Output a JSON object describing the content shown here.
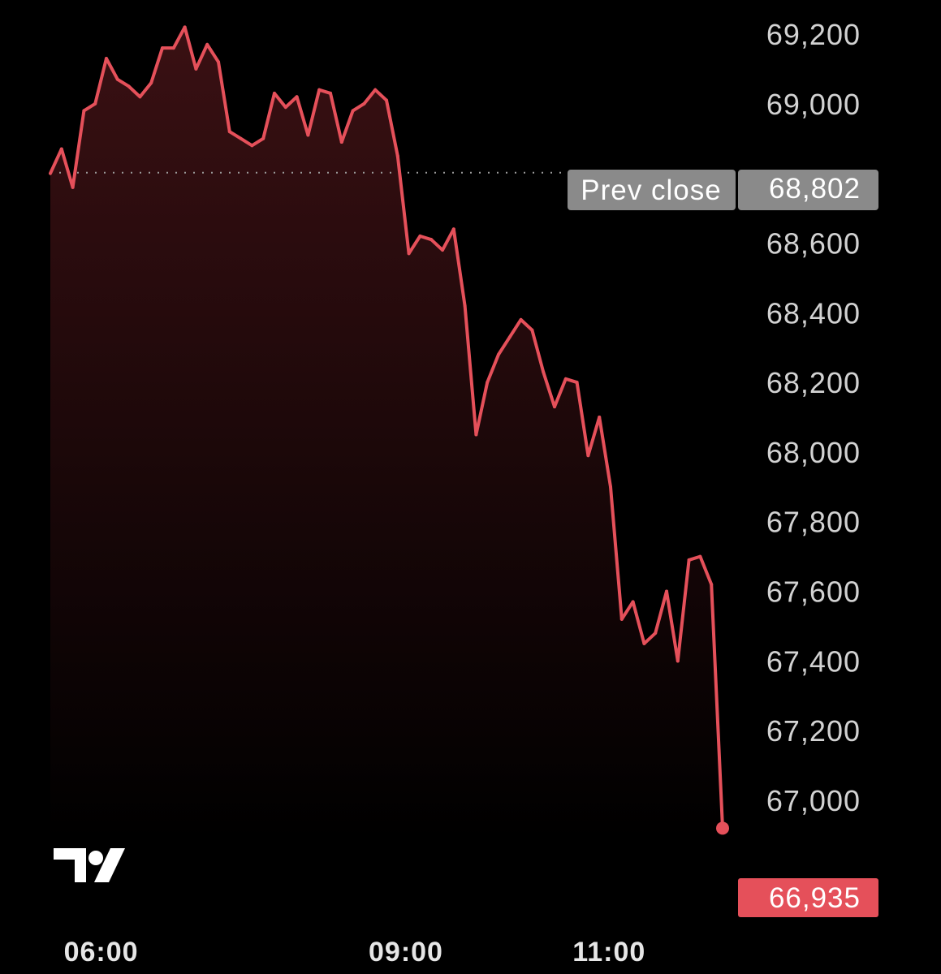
{
  "chart_data": {
    "type": "area",
    "title": "",
    "xlabel": "",
    "ylabel": "",
    "x": [
      "05:30",
      "05:37",
      "05:43",
      "05:50",
      "05:57",
      "06:03",
      "06:10",
      "06:17",
      "06:23",
      "06:30",
      "06:37",
      "06:43",
      "06:50",
      "06:57",
      "07:03",
      "07:10",
      "07:17",
      "07:23",
      "07:30",
      "07:37",
      "07:43",
      "07:50",
      "07:57",
      "08:03",
      "08:10",
      "08:17",
      "08:23",
      "08:30",
      "08:37",
      "08:43",
      "08:50",
      "08:57",
      "09:03",
      "09:10",
      "09:17",
      "09:23",
      "09:30",
      "09:37",
      "09:43",
      "09:50",
      "09:57",
      "10:03",
      "10:10",
      "10:17",
      "10:23",
      "10:30",
      "10:37",
      "10:43",
      "10:50",
      "10:57",
      "11:03",
      "11:10",
      "11:17",
      "11:23",
      "11:30",
      "11:37",
      "11:43",
      "11:50",
      "11:57",
      "12:03",
      "12:07"
    ],
    "series": [
      {
        "values": [
          68800,
          68870,
          68760,
          68980,
          69000,
          69130,
          69070,
          69050,
          69020,
          69060,
          69160,
          69160,
          69220,
          69100,
          69170,
          69120,
          68920,
          68900,
          68880,
          68900,
          69030,
          68990,
          69020,
          68910,
          69040,
          69030,
          68890,
          68980,
          69000,
          69040,
          69010,
          68850,
          68570,
          68620,
          68610,
          68580,
          68640,
          68420,
          68050,
          68200,
          68280,
          68330,
          68380,
          68350,
          68230,
          68130,
          68210,
          68200,
          67990,
          68100,
          67900,
          67520,
          67570,
          67450,
          67480,
          67600,
          67400,
          67690,
          67700,
          67620,
          66920
        ]
      }
    ],
    "y_ticks": [
      "69,200",
      "69,000",
      "68,802",
      "68,600",
      "68,400",
      "68,200",
      "68,000",
      "67,800",
      "67,600",
      "67,400",
      "67,200",
      "67,000"
    ],
    "x_ticks": [
      "06:00",
      "09:00",
      "11:00"
    ],
    "ylim": [
      66880,
      69290
    ],
    "grid": false,
    "prev_close": {
      "label": "Prev close",
      "value": 68802,
      "display": "68,802"
    },
    "last_price": {
      "value": 66935,
      "display": "66,935"
    },
    "colors": {
      "line": "#e5505a",
      "area_top": "#3a1013",
      "background": "#000000",
      "prev_close_badge": "#8a8a8a",
      "last_price_badge": "#e5505a"
    }
  },
  "watermark": {
    "icon": "tradingview-logo-icon",
    "text": "TV"
  }
}
